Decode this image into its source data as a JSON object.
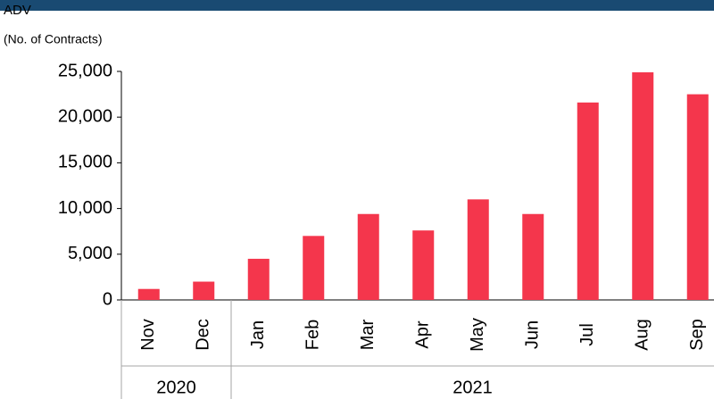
{
  "chart_data": {
    "type": "bar",
    "ylabel": [
      "ADV",
      "(No. of Contracts)"
    ],
    "groups": [
      {
        "label": "2020",
        "categories": [
          "Nov",
          "Dec"
        ]
      },
      {
        "label": "2021",
        "categories": [
          "Jan",
          "Feb",
          "Mar",
          "Apr",
          "May",
          "Jun",
          "Jul",
          "Aug",
          "Sep"
        ]
      }
    ],
    "values": [
      1200,
      2000,
      4500,
      7000,
      9400,
      7600,
      11000,
      9400,
      21600,
      24900,
      22500
    ],
    "color": "#f4364c",
    "ylim": [
      0,
      25000
    ],
    "yticks": [
      0,
      {
        "value": 5000,
        "label": "5,000"
      },
      {
        "value": 10000,
        "label": "10,000"
      },
      {
        "value": 15000,
        "label": "15,000"
      },
      {
        "value": 20000,
        "label": "20,000"
      },
      {
        "value": 25000,
        "label": "25,000"
      }
    ],
    "grid": false
  }
}
